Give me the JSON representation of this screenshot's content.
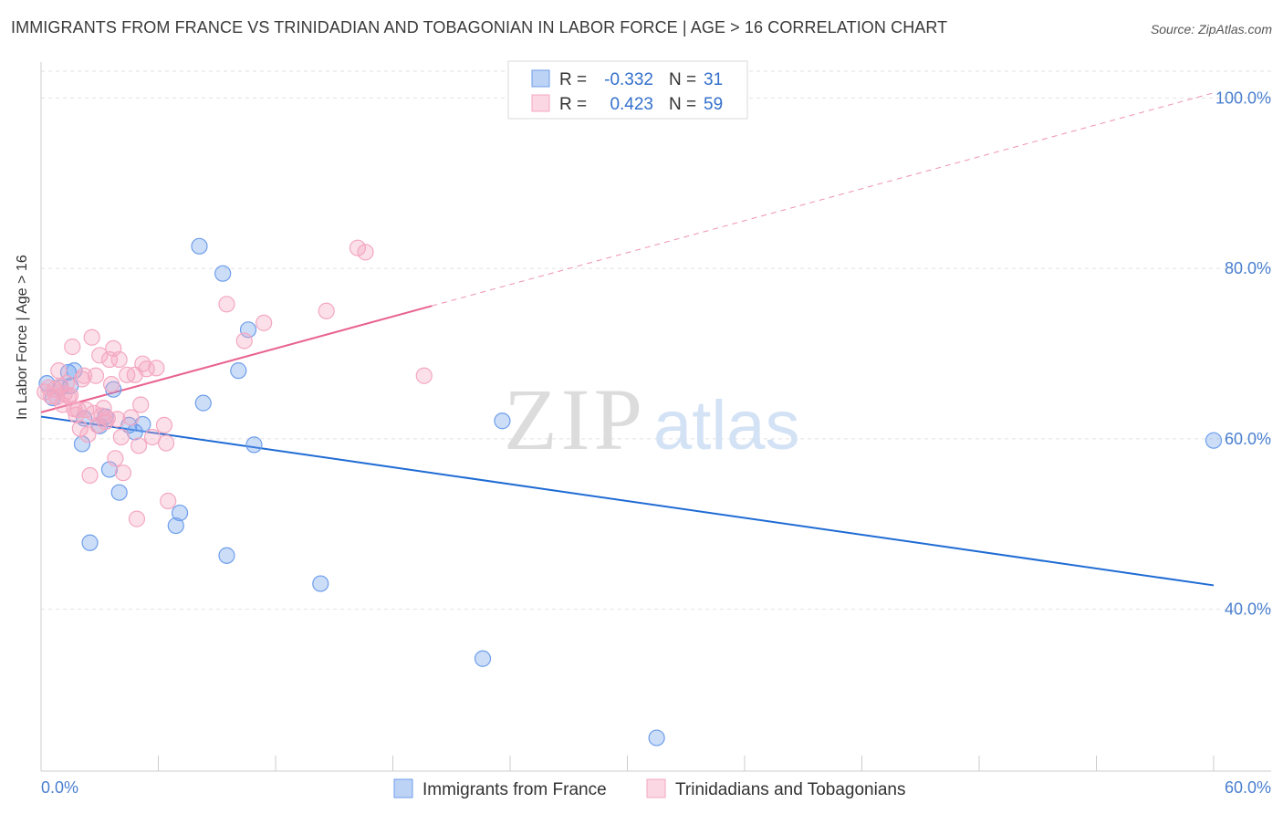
{
  "title": "IMMIGRANTS FROM FRANCE VS TRINIDADIAN AND TOBAGONIAN IN LABOR FORCE | AGE > 16 CORRELATION CHART",
  "source": "Source: ZipAtlas.com",
  "watermark": {
    "zip": "ZIP",
    "atlas": "atlas"
  },
  "chart_data": {
    "type": "scatter",
    "ylabel": "In Labor Force | Age > 16",
    "xlim": [
      0,
      60
    ],
    "ylim": [
      21,
      104
    ],
    "x_tick_labels": [
      "0.0%",
      "60.0%"
    ],
    "y_ticks": [
      40,
      60,
      80,
      100
    ],
    "y_tick_labels": [
      "40.0%",
      "60.0%",
      "80.0%",
      "100.0%"
    ],
    "grid": true,
    "legend_position": "top-center",
    "series": [
      {
        "name": "Immigrants from France",
        "color": "#6d9eeb",
        "line_color": "#1f6bd4",
        "stats": {
          "r_label": "R =",
          "r_value": "-0.332",
          "n_label": "N =",
          "n_value": "31"
        },
        "trend": {
          "x": [
            0,
            60
          ],
          "y": [
            62.6,
            42.8
          ]
        },
        "trend_dashed_extension": null,
        "points": [
          [
            0.3,
            66.5
          ],
          [
            0.6,
            64.8
          ],
          [
            1.0,
            66.0
          ],
          [
            1.5,
            66.2
          ],
          [
            1.4,
            67.8
          ],
          [
            1.7,
            68.0
          ],
          [
            2.2,
            62.4
          ],
          [
            2.1,
            59.4
          ],
          [
            2.5,
            47.8
          ],
          [
            3.0,
            61.5
          ],
          [
            3.3,
            62.6
          ],
          [
            3.5,
            56.4
          ],
          [
            3.7,
            65.8
          ],
          [
            4.0,
            53.7
          ],
          [
            4.5,
            61.6
          ],
          [
            4.8,
            60.8
          ],
          [
            5.2,
            61.7
          ],
          [
            6.9,
            49.8
          ],
          [
            7.1,
            51.3
          ],
          [
            8.1,
            82.6
          ],
          [
            8.3,
            64.2
          ],
          [
            9.3,
            79.4
          ],
          [
            9.5,
            46.3
          ],
          [
            10.1,
            68.0
          ],
          [
            10.6,
            72.8
          ],
          [
            10.9,
            59.3
          ],
          [
            14.3,
            43.0
          ],
          [
            22.6,
            34.2
          ],
          [
            23.6,
            62.1
          ],
          [
            31.5,
            24.9
          ],
          [
            60.0,
            59.8
          ]
        ]
      },
      {
        "name": "Trinidadians and Tobagonians",
        "color": "#f4a7c1",
        "line_color": "#e8628f",
        "stats": {
          "r_label": "R =",
          "r_value": "0.423",
          "n_label": "N =",
          "n_value": "59"
        },
        "trend": {
          "x": [
            0,
            20
          ],
          "y": [
            63.1,
            75.6
          ]
        },
        "trend_dashed_extension": {
          "x": [
            20,
            60
          ],
          "y": [
            75.6,
            100.6
          ]
        },
        "points": [
          [
            0.2,
            65.5
          ],
          [
            0.4,
            66.0
          ],
          [
            0.5,
            65.0
          ],
          [
            0.7,
            65.8
          ],
          [
            0.8,
            64.9
          ],
          [
            0.9,
            68.0
          ],
          [
            1.0,
            66.2
          ],
          [
            1.1,
            64.0
          ],
          [
            1.2,
            65.3
          ],
          [
            1.3,
            66.5
          ],
          [
            1.4,
            65.0
          ],
          [
            1.5,
            65.1
          ],
          [
            1.6,
            70.8
          ],
          [
            1.7,
            63.5
          ],
          [
            1.8,
            62.8
          ],
          [
            1.9,
            63.4
          ],
          [
            2.0,
            61.2
          ],
          [
            2.1,
            67.0
          ],
          [
            2.2,
            67.4
          ],
          [
            2.3,
            63.4
          ],
          [
            2.4,
            60.5
          ],
          [
            2.5,
            55.7
          ],
          [
            2.6,
            71.9
          ],
          [
            2.7,
            63.0
          ],
          [
            2.8,
            67.4
          ],
          [
            2.9,
            61.6
          ],
          [
            3.0,
            69.8
          ],
          [
            3.1,
            62.7
          ],
          [
            3.2,
            63.6
          ],
          [
            3.3,
            62.0
          ],
          [
            3.4,
            62.4
          ],
          [
            3.5,
            69.3
          ],
          [
            3.6,
            66.4
          ],
          [
            3.7,
            70.6
          ],
          [
            3.8,
            57.7
          ],
          [
            3.9,
            62.3
          ],
          [
            4.0,
            69.3
          ],
          [
            4.1,
            60.2
          ],
          [
            4.2,
            56.0
          ],
          [
            4.4,
            67.5
          ],
          [
            4.6,
            62.5
          ],
          [
            4.8,
            67.5
          ],
          [
            4.9,
            50.6
          ],
          [
            5.0,
            59.2
          ],
          [
            5.1,
            64.0
          ],
          [
            5.2,
            68.8
          ],
          [
            5.4,
            68.2
          ],
          [
            5.7,
            60.2
          ],
          [
            5.9,
            68.3
          ],
          [
            6.3,
            61.6
          ],
          [
            6.4,
            59.5
          ],
          [
            6.5,
            52.7
          ],
          [
            9.5,
            75.8
          ],
          [
            10.4,
            71.5
          ],
          [
            11.4,
            73.6
          ],
          [
            14.6,
            75.0
          ],
          [
            16.2,
            82.4
          ],
          [
            16.6,
            81.9
          ],
          [
            19.6,
            67.4
          ]
        ]
      }
    ]
  }
}
